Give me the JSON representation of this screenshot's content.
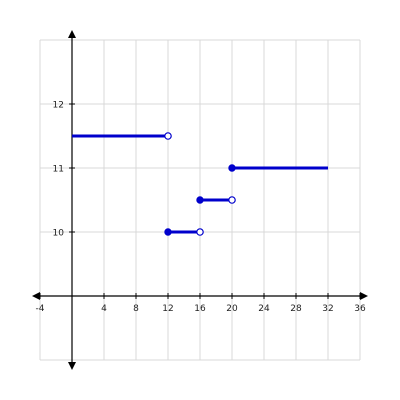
{
  "chart_data": {
    "type": "line",
    "title": "",
    "xlabel": "",
    "ylabel": "",
    "xlim": [
      -4,
      36
    ],
    "ylim": [
      8,
      13
    ],
    "grid": true,
    "x_ticks": [
      -4,
      4,
      8,
      12,
      16,
      20,
      24,
      28,
      32,
      36
    ],
    "y_ticks": [
      10,
      11,
      12
    ],
    "series": [
      {
        "type": "step-segments",
        "color": "#0000cc",
        "segments": [
          {
            "x_start": 0,
            "x_end": 12,
            "y": 11.5,
            "start": "none",
            "end": "open"
          },
          {
            "x_start": 12,
            "x_end": 16,
            "y": 10,
            "start": "closed",
            "end": "open"
          },
          {
            "x_start": 16,
            "x_end": 20,
            "y": 10.5,
            "start": "closed",
            "end": "open"
          },
          {
            "x_start": 20,
            "x_end": 32,
            "y": 11,
            "start": "closed",
            "end": "none"
          }
        ]
      }
    ]
  }
}
